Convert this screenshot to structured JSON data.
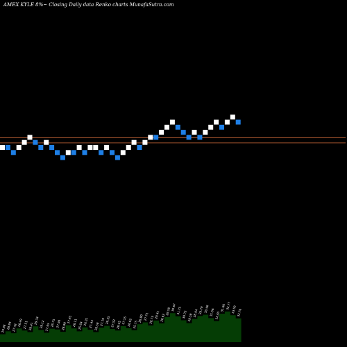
{
  "header": {
    "title": "AMEX  KYLE 8%~  Closing Daily data  Renko  charts MunafaSutra.com"
  },
  "colors": {
    "background": "#000000",
    "up_brick": "#ffffff",
    "down_brick": "#1e7fe6",
    "reference_line": "#a0522d",
    "volume_fill": "#053d05"
  },
  "chart_data": {
    "type": "renko",
    "title": "AMEX  KYLE 8%~  Closing Daily data  Renko  charts MunafaSutra.com",
    "box_size_percent": 8,
    "grid": false,
    "reference_lines": [
      1,
      2
    ],
    "levels": [
      0,
      0,
      -1,
      0,
      1,
      2,
      1,
      0,
      1,
      0,
      -1,
      -2,
      -1,
      -1,
      0,
      -1,
      0,
      0,
      -1,
      0,
      -1,
      -2,
      -1,
      0,
      1,
      0,
      1,
      2,
      2,
      3,
      4,
      5,
      4,
      3,
      2,
      3,
      2,
      3,
      4,
      5,
      4,
      5,
      6,
      5
    ],
    "directions": [
      "up",
      "down",
      "down",
      "up",
      "up",
      "up",
      "down",
      "down",
      "up",
      "down",
      "down",
      "down",
      "up",
      "down",
      "up",
      "down",
      "up",
      "up",
      "down",
      "up",
      "down",
      "down",
      "up",
      "up",
      "up",
      "down",
      "up",
      "up",
      "down",
      "up",
      "up",
      "up",
      "down",
      "down",
      "down",
      "up",
      "down",
      "up",
      "up",
      "up",
      "down",
      "up",
      "up",
      "down"
    ],
    "volume_labels": [
      "29.98",
      "28.84",
      "27.42",
      "26.49",
      "27.51",
      "28.41",
      "29.34",
      "28.12",
      "27.65",
      "26.75",
      "27.90",
      "28.80",
      "27.45",
      "26.11",
      "25.64",
      "26.31",
      "27.44",
      "28.58",
      "27.19",
      "26.35",
      "27.52",
      "28.45",
      "27.55",
      "26.62",
      "25.75",
      "26.80",
      "27.71",
      "28.73",
      "29.41",
      "28.62",
      "29.59",
      "30.67",
      "31.75",
      "30.72",
      "29.58",
      "28.94",
      "29.79",
      "30.46",
      "31.56",
      "32.65",
      "31.66",
      "32.77",
      "33.59",
      "32.70"
    ],
    "volume_values": [
      3.0,
      4.1,
      3.4,
      5.2,
      4.4,
      3.8,
      6.0,
      4.6,
      3.6,
      5.1,
      4.8,
      3.9,
      6.4,
      5.2,
      4.1,
      5.6,
      4.7,
      3.8,
      5.5,
      6.2,
      5.0,
      4.4,
      6.1,
      5.3,
      4.5,
      6.8,
      7.5,
      6.3,
      8.2,
      7.1,
      9.5,
      11.0,
      9.8,
      8.3,
      7.2,
      8.8,
      9.9,
      10.4,
      9.1,
      8.0,
      10.8,
      11.6,
      10.2,
      9.0
    ]
  }
}
